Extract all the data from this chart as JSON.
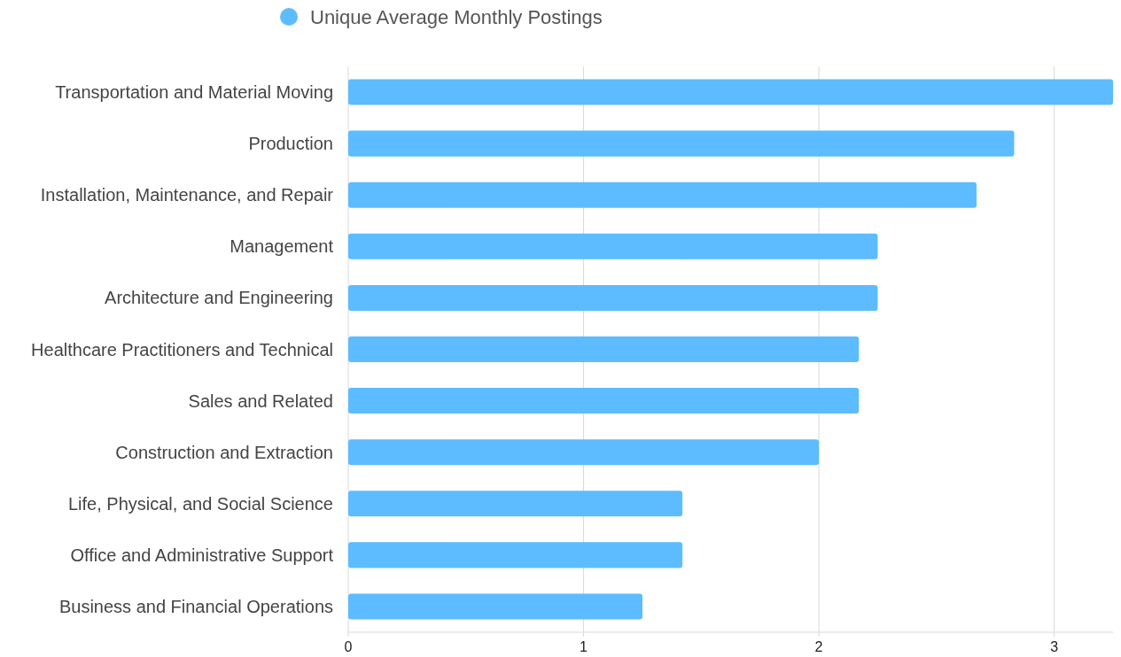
{
  "chart_data": {
    "type": "bar",
    "orientation": "horizontal",
    "categories": [
      "Transportation and Material Moving",
      "Production",
      "Installation, Maintenance, and Repair",
      "Management",
      "Architecture and Engineering",
      "Healthcare Practitioners and Technical",
      "Sales and Related",
      "Construction and Extraction",
      "Life, Physical, and Social Science",
      "Office and Administrative Support",
      "Business and Financial Operations"
    ],
    "series": [
      {
        "name": "Unique Average Monthly Postings",
        "color": "#5cbcff",
        "values": [
          3.25,
          2.83,
          2.67,
          2.25,
          2.25,
          2.17,
          2.17,
          2.0,
          1.42,
          1.42,
          1.25
        ]
      }
    ],
    "xlim": [
      0,
      3.25
    ],
    "xticks": [
      0,
      1,
      2,
      3
    ],
    "grid": "x",
    "legend": "top"
  }
}
